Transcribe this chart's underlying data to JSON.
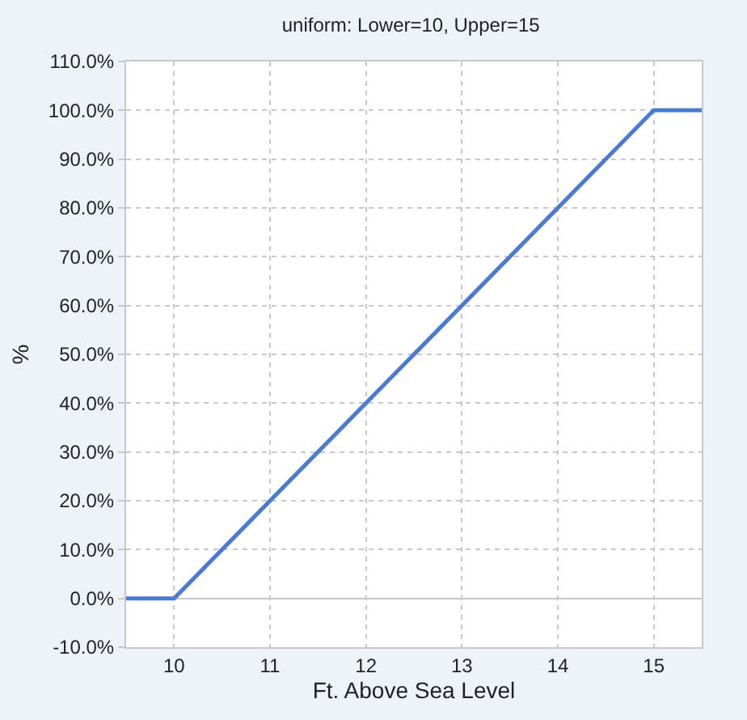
{
  "chart_data": {
    "type": "line",
    "title": "uniform: Lower=10, Upper=15",
    "xlabel": "Ft. Above Sea Level",
    "ylabel": "%",
    "x": [
      9.5,
      10,
      15,
      15.5
    ],
    "series": [
      {
        "color": "#4a7bd0",
        "values": [
          0,
          0,
          100,
          100
        ]
      }
    ],
    "xlim": [
      9.5,
      15.5
    ],
    "xticks": [
      10,
      11,
      12,
      13,
      14,
      15
    ],
    "ylim": [
      -10,
      110
    ],
    "yticks": [
      {
        "value": -10,
        "label": "-10.0%"
      },
      {
        "value": 0,
        "label": "0.0%"
      },
      {
        "value": 10,
        "label": "10.0%"
      },
      {
        "value": 20,
        "label": "20.0%"
      },
      {
        "value": 30,
        "label": "30.0%"
      },
      {
        "value": 40,
        "label": "40.0%"
      },
      {
        "value": 50,
        "label": "50.0%"
      },
      {
        "value": 60,
        "label": "60.0%"
      },
      {
        "value": 70,
        "label": "70.0%"
      },
      {
        "value": 80,
        "label": "80.0%"
      },
      {
        "value": 90,
        "label": "90.0%"
      },
      {
        "value": 100,
        "label": "100.0%"
      },
      {
        "value": 110,
        "label": "110.0%"
      }
    ],
    "grid": true,
    "legend": false,
    "marker": "none",
    "line_style": "solid"
  }
}
